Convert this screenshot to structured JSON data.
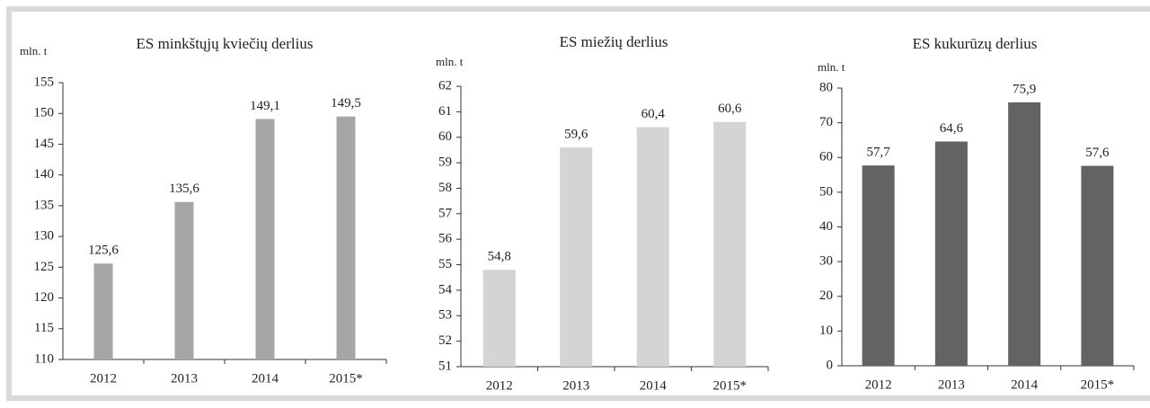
{
  "chart_data": [
    {
      "type": "bar",
      "title": "ES minkštųjų kviečių derlius",
      "ylabel": "mln. t",
      "categories": [
        "2012",
        "2013",
        "2014",
        "2015*"
      ],
      "values": [
        125.6,
        135.6,
        149.1,
        149.5
      ],
      "value_labels": [
        "125,6",
        "135,6",
        "149,1",
        "149,5"
      ],
      "color": "#a6a6a6",
      "ylim": [
        110,
        155
      ],
      "yticks": [
        110,
        115,
        120,
        125,
        130,
        135,
        140,
        145,
        150,
        155
      ],
      "grid": false
    },
    {
      "type": "bar",
      "title": "ES miežių derlius",
      "ylabel": "mln. t",
      "categories": [
        "2012",
        "2013",
        "2014",
        "2015*"
      ],
      "values": [
        54.8,
        59.6,
        60.4,
        60.6
      ],
      "value_labels": [
        "54,8",
        "59,6",
        "60,4",
        "60,6"
      ],
      "color": "#d4d4d4",
      "ylim": [
        51,
        62
      ],
      "yticks": [
        51,
        52,
        53,
        54,
        55,
        56,
        57,
        58,
        59,
        60,
        61,
        62
      ],
      "grid": false
    },
    {
      "type": "bar",
      "title": "ES kukurūzų derlius",
      "ylabel": "mln. t",
      "categories": [
        "2012",
        "2013",
        "2014",
        "2015*"
      ],
      "values": [
        57.7,
        64.6,
        75.9,
        57.6
      ],
      "value_labels": [
        "57,7",
        "64,6",
        "75,9",
        "57,6"
      ],
      "color": "#636363",
      "ylim": [
        0,
        80
      ],
      "yticks": [
        0,
        10,
        20,
        30,
        40,
        50,
        60,
        70,
        80
      ],
      "grid": false
    }
  ]
}
